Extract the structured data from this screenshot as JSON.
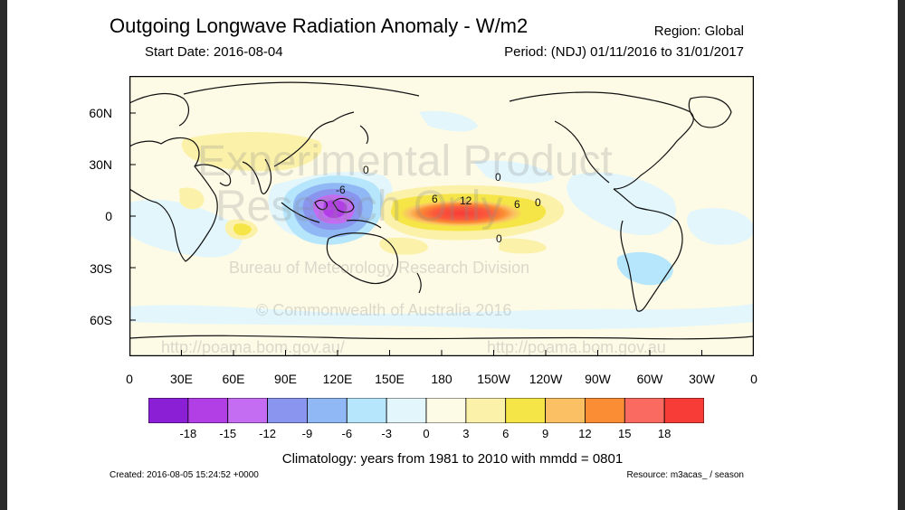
{
  "header": {
    "title": "Outgoing Longwave Radiation Anomaly - W/m2",
    "start_date": "Start Date: 2016-08-04",
    "region": "Region: Global",
    "period": "Period: (NDJ) 01/11/2016 to 31/01/2017"
  },
  "map": {
    "lat_labels": [
      "60N",
      "30N",
      "0",
      "30S",
      "60S"
    ],
    "lon_labels": [
      "0",
      "30E",
      "60E",
      "90E",
      "120E",
      "150E",
      "180",
      "150W",
      "120W",
      "90W",
      "60W",
      "30W",
      "0"
    ],
    "contour_labels": [
      "0",
      "0",
      "6",
      "12",
      "6",
      "0",
      "0",
      "-6"
    ],
    "watermarks": [
      "Experimental Product",
      "Research Only",
      "Bureau of Meteorology Research Division",
      "© Commonwealth of Australia 2016",
      "http://poama.bom.gov.au/",
      "http://poama.bom.gov.au"
    ]
  },
  "colorbar": {
    "labels": [
      "-18",
      "-15",
      "-12",
      "-9",
      "-6",
      "-3",
      "0",
      "3",
      "6",
      "9",
      "12",
      "15",
      "18"
    ],
    "colors": [
      "#8a1fd6",
      "#b23ee6",
      "#c46cf2",
      "#8a95f0",
      "#90b8f4",
      "#b6e6fb",
      "#e2f6fb",
      "#fdfbe6",
      "#fbf1a9",
      "#f6e547",
      "#fbc063",
      "#fb8e34",
      "#fb6a60",
      "#f73b36"
    ]
  },
  "footer": {
    "climatology": "Climatology: years from 1981 to 2010 with mmdd = 0801",
    "created": "Created: 2016-08-05 15:24:52 +0000",
    "resource": "Resource: m3acas_ / season"
  }
}
